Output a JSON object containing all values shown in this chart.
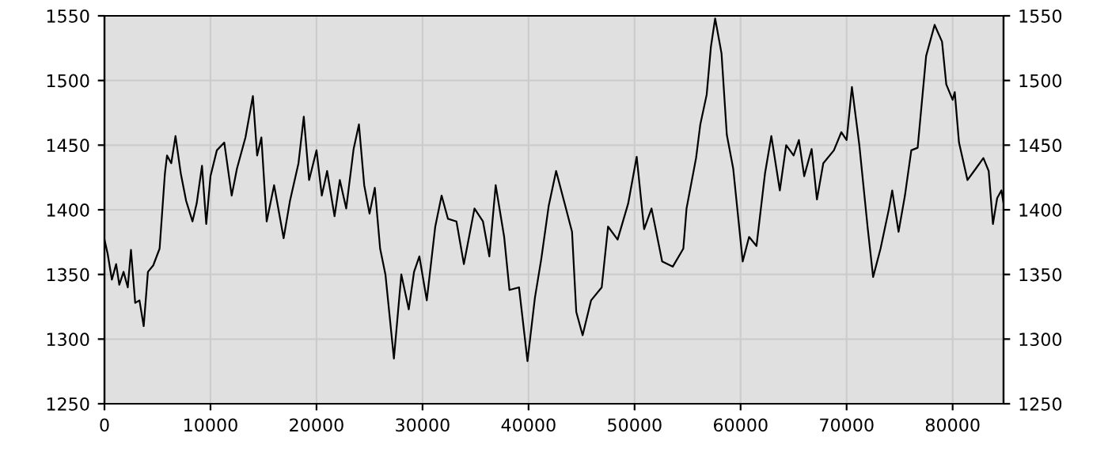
{
  "chart_data": {
    "type": "line",
    "x": [
      0,
      300,
      700,
      1100,
      1400,
      1800,
      2200,
      2500,
      2900,
      3300,
      3700,
      4100,
      4600,
      5200,
      5700,
      5900,
      6300,
      6700,
      7200,
      7700,
      8300,
      8700,
      9200,
      9600,
      10000,
      10600,
      11300,
      12000,
      12500,
      13300,
      14000,
      14400,
      14800,
      15300,
      16000,
      16900,
      17500,
      18300,
      18800,
      19300,
      20000,
      20500,
      21000,
      21700,
      22200,
      22800,
      23500,
      24000,
      24500,
      25000,
      25500,
      26000,
      26500,
      27300,
      28000,
      28700,
      29200,
      29700,
      30400,
      31200,
      31800,
      32400,
      33200,
      33900,
      34900,
      35700,
      36300,
      36900,
      37700,
      38200,
      39100,
      39900,
      40600,
      41200,
      41900,
      42600,
      43400,
      44100,
      44500,
      45100,
      45900,
      46900,
      47500,
      48400,
      49400,
      50200,
      50900,
      51600,
      52600,
      53600,
      54600,
      54900,
      55800,
      56200,
      56800,
      57200,
      57600,
      58200,
      58700,
      59300,
      60200,
      60800,
      61500,
      62300,
      62900,
      63700,
      64300,
      65000,
      65500,
      66000,
      66700,
      67200,
      67800,
      68800,
      69500,
      70000,
      70500,
      71200,
      72000,
      72500,
      73200,
      74000,
      74300,
      74900,
      75500,
      76100,
      76700,
      77500,
      78300,
      79000,
      79400,
      80000,
      80200,
      80600,
      81400,
      82200,
      82900,
      83400,
      83800,
      84200,
      84600,
      84800
    ],
    "series": [
      {
        "color": "#000000",
        "values": [
          1377,
          1366,
          1346,
          1358,
          1342,
          1352,
          1340,
          1369,
          1328,
          1330,
          1310,
          1352,
          1357,
          1370,
          1428,
          1442,
          1436,
          1457,
          1428,
          1407,
          1391,
          1405,
          1434,
          1389,
          1426,
          1446,
          1452,
          1411,
          1432,
          1456,
          1488,
          1442,
          1456,
          1391,
          1419,
          1378,
          1407,
          1436,
          1472,
          1423,
          1446,
          1411,
          1430,
          1395,
          1423,
          1401,
          1447,
          1466,
          1419,
          1397,
          1417,
          1370,
          1350,
          1285,
          1350,
          1323,
          1352,
          1364,
          1330,
          1387,
          1411,
          1393,
          1391,
          1358,
          1401,
          1391,
          1364,
          1419,
          1379,
          1338,
          1340,
          1283,
          1332,
          1362,
          1403,
          1430,
          1405,
          1383,
          1321,
          1303,
          1330,
          1340,
          1387,
          1377,
          1405,
          1441,
          1385,
          1401,
          1360,
          1356,
          1370,
          1401,
          1440,
          1466,
          1489,
          1526,
          1548,
          1521,
          1458,
          1432,
          1360,
          1379,
          1372,
          1428,
          1457,
          1415,
          1450,
          1442,
          1454,
          1426,
          1447,
          1408,
          1436,
          1446,
          1460,
          1454,
          1495,
          1450,
          1385,
          1348,
          1370,
          1401,
          1415,
          1383,
          1411,
          1446,
          1448,
          1519,
          1543,
          1530,
          1497,
          1485,
          1491,
          1452,
          1423,
          1432,
          1440,
          1430,
          1389,
          1409,
          1415,
          1405
        ]
      }
    ],
    "xlim": [
      0,
      84800
    ],
    "xticks": [
      0,
      10000,
      20000,
      30000,
      40000,
      50000,
      60000,
      70000,
      80000
    ],
    "ylim": [
      1250,
      1550
    ],
    "yticks": [
      1250,
      1300,
      1350,
      1400,
      1450,
      1500,
      1550
    ],
    "y2lim": [
      1250,
      1550
    ],
    "y2ticks": [
      1250,
      1300,
      1350,
      1400,
      1450,
      1500,
      1550
    ],
    "grid": true,
    "marker": "none",
    "line_style": "solid",
    "legend": false
  }
}
